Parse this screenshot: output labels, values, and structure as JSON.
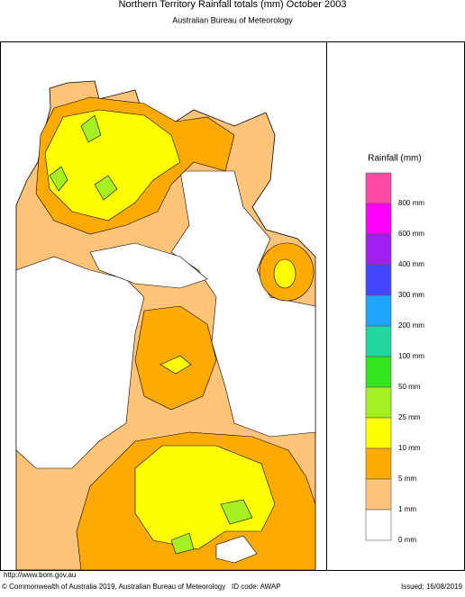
{
  "header": {
    "title": "Northern Territory Rainfall totals (mm) October 2003",
    "subtitle": "Australian Bureau of Meteorology"
  },
  "legend": {
    "title": "Rainfall (mm)",
    "labels": [
      "800 mm",
      "600 mm",
      "400 mm",
      "300 mm",
      "200 mm",
      "100 mm",
      "50 mm",
      "25 mm",
      "10 mm",
      "5 mm",
      "1 mm",
      "0 mm"
    ],
    "colors": [
      "#ff4aa5",
      "#ff00ff",
      "#a020f0",
      "#4646ff",
      "#1ea5ff",
      "#22d6a0",
      "#35e61e",
      "#a5f020",
      "#ffff00",
      "#ffaa00",
      "#ffc478",
      "#ffffff"
    ]
  },
  "footer": {
    "url": "http://www.bom.gov.au",
    "copyright": "© Commonwealth of Australia 2019, Australian Bureau of Meteorology",
    "id_code": "ID code: AWAP",
    "issued": "Issued: 16/08/2019"
  }
}
